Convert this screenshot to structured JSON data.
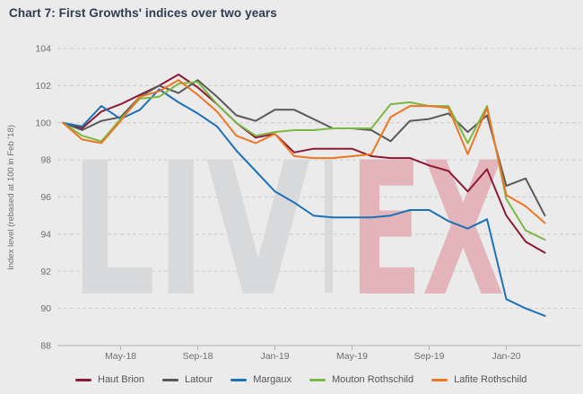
{
  "title": "Chart 7: First Growths' indices over two years",
  "watermark": {
    "left": "LIV",
    "right": "EX"
  },
  "chart_data": {
    "type": "line",
    "title": "Chart 7: First Growths' indices over two years",
    "xlabel": "",
    "ylabel": "Index level (rebased at 100 in Feb '18)",
    "ylim": [
      88,
      104
    ],
    "yticks": [
      88,
      90,
      92,
      94,
      96,
      98,
      100,
      102,
      104
    ],
    "grid": "dashed-horizontal",
    "legend_position": "bottom",
    "x": [
      "Feb-18",
      "Mar-18",
      "Apr-18",
      "May-18",
      "Jun-18",
      "Jul-18",
      "Aug-18",
      "Sep-18",
      "Oct-18",
      "Nov-18",
      "Dec-18",
      "Jan-19",
      "Feb-19",
      "Mar-19",
      "Apr-19",
      "May-19",
      "Jun-19",
      "Jul-19",
      "Aug-19",
      "Sep-19",
      "Oct-19",
      "Nov-19",
      "Dec-19",
      "Jan-20",
      "Feb-20",
      "Mar-20"
    ],
    "x_tick_labels": [
      "May-18",
      "Sep-18",
      "Jan-19",
      "May-19",
      "Sep-19",
      "Jan-20"
    ],
    "x_tick_indices": [
      3,
      7,
      11,
      15,
      19,
      23
    ],
    "series": [
      {
        "name": "Haut Brion",
        "color": "#8b1a32",
        "values": [
          100,
          99.7,
          100.6,
          101.0,
          101.5,
          102.0,
          102.6,
          101.9,
          101.0,
          100.0,
          99.2,
          99.4,
          98.4,
          98.6,
          98.6,
          98.6,
          98.2,
          98.1,
          98.1,
          97.7,
          97.4,
          96.3,
          97.5,
          95.0,
          93.6,
          93.0
        ]
      },
      {
        "name": "Latour",
        "color": "#58595b",
        "values": [
          100,
          99.6,
          100.1,
          100.3,
          101.4,
          102.0,
          101.6,
          102.3,
          101.4,
          100.4,
          100.1,
          100.7,
          100.7,
          100.2,
          99.7,
          99.7,
          99.6,
          99.0,
          100.1,
          100.2,
          100.5,
          99.5,
          100.4,
          96.6,
          97.0,
          95.0
        ]
      },
      {
        "name": "Margaux",
        "color": "#1d71b8",
        "values": [
          100,
          99.8,
          100.9,
          100.2,
          100.7,
          101.8,
          101.1,
          100.5,
          99.8,
          98.5,
          97.4,
          96.3,
          95.7,
          95.0,
          94.9,
          94.9,
          94.9,
          95.0,
          95.3,
          95.3,
          94.7,
          94.3,
          94.8,
          90.5,
          90.0,
          89.6
        ]
      },
      {
        "name": "Mouton Rothschild",
        "color": "#7cb842",
        "values": [
          100,
          99.3,
          99.0,
          100.2,
          101.3,
          101.4,
          102.1,
          102.2,
          101.0,
          100.0,
          99.3,
          99.5,
          99.6,
          99.6,
          99.7,
          99.7,
          99.7,
          101.0,
          101.1,
          100.9,
          100.9,
          98.9,
          100.9,
          95.9,
          94.2,
          93.7
        ]
      },
      {
        "name": "Lafite Rothschild",
        "color": "#ee7623",
        "values": [
          100,
          99.1,
          98.9,
          100.1,
          101.4,
          101.7,
          102.3,
          101.5,
          100.6,
          99.3,
          98.9,
          99.4,
          98.2,
          98.1,
          98.1,
          98.2,
          98.3,
          100.3,
          100.9,
          100.9,
          100.8,
          98.3,
          100.8,
          96.1,
          95.5,
          94.6
        ]
      }
    ]
  }
}
